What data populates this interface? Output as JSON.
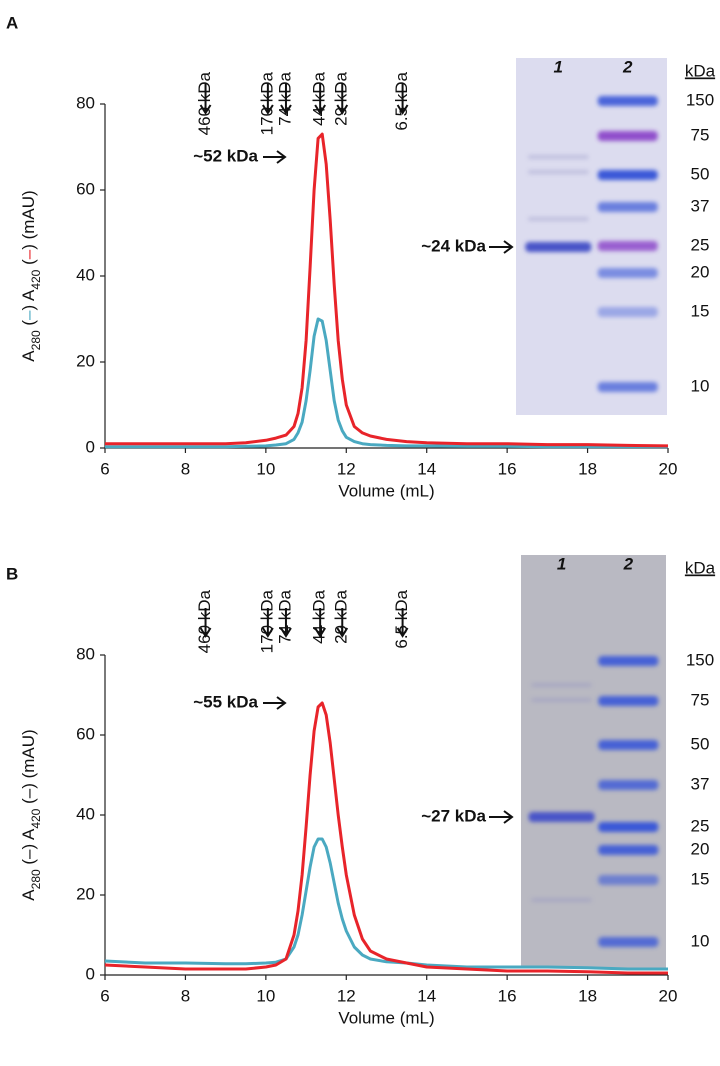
{
  "chart_data": [
    {
      "type": "line",
      "panel": "A",
      "xlabel": "Volume (mL)",
      "ylabel": [
        "A",
        "280",
        " (",
        "–",
        ") A",
        "420",
        " (",
        "–",
        ") (mAU)"
      ],
      "ylabel_dash_colors": true,
      "xlim": [
        6,
        20
      ],
      "xticks": [
        6,
        8,
        10,
        12,
        14,
        16,
        18,
        20
      ],
      "ylim": [
        0,
        80
      ],
      "yticks": [
        0,
        20,
        40,
        60,
        80
      ],
      "x": [
        6,
        7,
        8,
        9,
        9.5,
        10,
        10.25,
        10.5,
        10.7,
        10.8,
        10.9,
        11,
        11.1,
        11.2,
        11.3,
        11.4,
        11.5,
        11.6,
        11.7,
        11.8,
        11.9,
        12,
        12.2,
        12.4,
        12.6,
        13,
        13.5,
        14,
        15,
        16,
        17,
        18,
        19,
        20
      ],
      "series": [
        {
          "color": "#4aa9c1",
          "values": [
            0.3,
            0.3,
            0.3,
            0.3,
            0.4,
            0.5,
            0.7,
            1,
            2,
            3.5,
            6,
            11,
            18,
            26,
            30,
            29.5,
            25,
            18,
            11,
            6.5,
            4,
            2.5,
            1.5,
            1,
            0.8,
            0.6,
            0.5,
            0.5,
            0.4,
            0.4,
            0.3,
            0.3,
            0.3,
            0.3
          ]
        },
        {
          "color": "#e8242a",
          "values": [
            1,
            1,
            1,
            1,
            1.2,
            1.8,
            2.3,
            3,
            5,
            8,
            14,
            25,
            42,
            60,
            72,
            73,
            66,
            53,
            38,
            25,
            16,
            10,
            5,
            3.5,
            2.8,
            2,
            1.5,
            1.2,
            1,
            1,
            0.8,
            0.8,
            0.6,
            0.5
          ]
        }
      ],
      "markers": [
        {
          "label": "460 kDa",
          "x": 8.5
        },
        {
          "label": "170 kDa",
          "x": 10.05
        },
        {
          "label": "74 kDa",
          "x": 10.5
        },
        {
          "label": "44 kDa",
          "x": 11.35
        },
        {
          "label": "29 kDa",
          "x": 11.9
        },
        {
          "label": "6.5 kDa",
          "x": 13.4
        }
      ],
      "peak_label": "~52 kDa",
      "gel": {
        "lanes": [
          "1",
          "2"
        ],
        "unit": "kDa",
        "ladder": [
          150,
          75,
          50,
          37,
          25,
          20,
          15,
          10
        ],
        "band_label": "~24 kDa"
      }
    },
    {
      "type": "line",
      "panel": "B",
      "xlabel": "Volume (mL)",
      "ylabel": [
        "A",
        "280",
        " (",
        "–",
        ") A",
        "420",
        " (",
        "–",
        ") (mAU)"
      ],
      "ylabel_dash_colors": false,
      "xlim": [
        6,
        20
      ],
      "xticks": [
        6,
        8,
        10,
        12,
        14,
        16,
        18,
        20
      ],
      "ylim": [
        0,
        80
      ],
      "yticks": [
        0,
        20,
        40,
        60,
        80
      ],
      "x": [
        6,
        7,
        8,
        9,
        9.5,
        10,
        10.25,
        10.5,
        10.7,
        10.8,
        10.9,
        11,
        11.1,
        11.2,
        11.3,
        11.4,
        11.5,
        11.6,
        11.7,
        11.8,
        11.9,
        12,
        12.2,
        12.4,
        12.6,
        13,
        13.5,
        14,
        15,
        16,
        17,
        18,
        19,
        20
      ],
      "series": [
        {
          "color": "#4aa9c1",
          "values": [
            3.5,
            3,
            3,
            2.8,
            2.8,
            3,
            3.2,
            4,
            7,
            10,
            15,
            21,
            27,
            32,
            34,
            34,
            32,
            28,
            23,
            18,
            14,
            11,
            7,
            5,
            4,
            3.3,
            3,
            2.5,
            2,
            2,
            2,
            1.8,
            1.5,
            1.5
          ]
        },
        {
          "color": "#e8242a",
          "values": [
            2.5,
            2,
            1.5,
            1.5,
            1.5,
            2,
            2.5,
            4,
            10,
            16,
            25,
            37,
            50,
            61,
            67,
            68,
            65,
            58,
            49,
            40,
            32,
            25,
            15,
            9,
            6,
            4,
            3,
            2,
            1.5,
            1,
            1,
            0.8,
            0.5,
            0.5
          ]
        }
      ],
      "markers": [
        {
          "label": "460 kDa",
          "x": 8.5
        },
        {
          "label": "170 kDa",
          "x": 10.05
        },
        {
          "label": "74 kDa",
          "x": 10.5
        },
        {
          "label": "44 kDa",
          "x": 11.35
        },
        {
          "label": "29 kDa",
          "x": 11.9
        },
        {
          "label": "6.5 kDa",
          "x": 13.4
        }
      ],
      "peak_label": "~55 kDa",
      "gel": {
        "lanes": [
          "1",
          "2"
        ],
        "unit": "kDa",
        "ladder": [
          150,
          75,
          50,
          37,
          25,
          20,
          15,
          10
        ],
        "band_label": "~27 kDa"
      }
    }
  ]
}
